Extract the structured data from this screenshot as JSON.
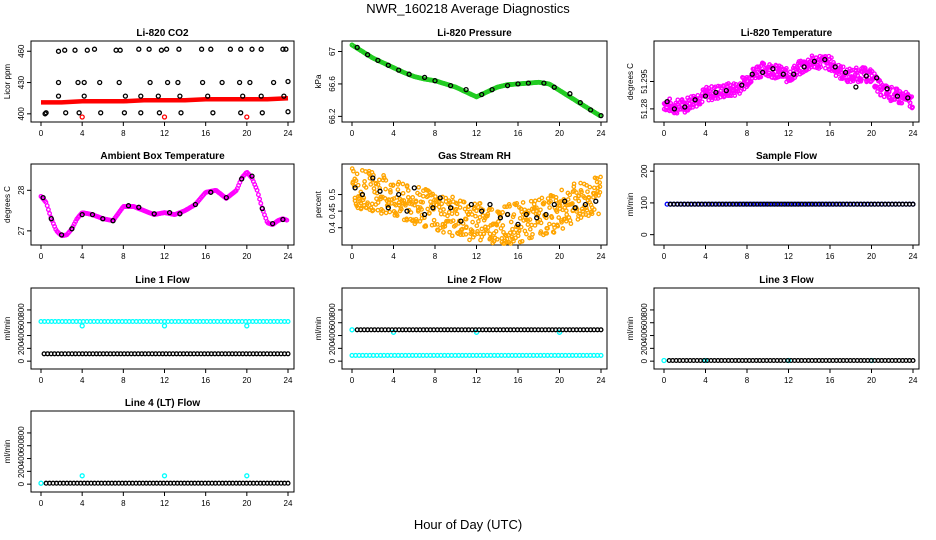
{
  "title": "NWR_160218  Average Diagnostics",
  "xlabel": "Hour of Day (UTC)",
  "colors": {
    "black": "#000000",
    "red": "#ff0000",
    "green": "#22cc22",
    "magenta": "#ff00ff",
    "orange": "#ffa500",
    "cyan": "#00ffff",
    "blue": "#0000ff"
  },
  "chart_data": [
    {
      "type": "scatter",
      "title": "Li-820 CO2",
      "ylabel": "Licor ppm",
      "xlim": [
        0,
        24
      ],
      "ylim": [
        396,
        466
      ],
      "xticks": [
        0,
        4,
        8,
        12,
        16,
        20,
        24
      ],
      "yticks": [
        400,
        430,
        460
      ],
      "series": [
        {
          "color": "#ff0000",
          "kind": "line",
          "x": [
            0,
            2,
            4,
            6,
            8,
            10,
            12,
            14,
            16,
            18,
            20,
            22,
            24
          ],
          "y": [
            411,
            411,
            412,
            412,
            412,
            413,
            413,
            413,
            414,
            414,
            414,
            414,
            415
          ]
        },
        {
          "color": "#ff0000",
          "kind": "points",
          "x": [
            4,
            12,
            20
          ],
          "y": [
            397,
            397,
            397
          ]
        },
        {
          "color": "#000000",
          "kind": "points",
          "x": [
            0.4,
            1.7,
            2.3,
            3.3,
            4.5,
            5.2,
            7.3,
            7.7,
            9.5,
            10.5,
            11.7,
            12.2,
            13.4,
            15.6,
            16.5,
            18.4,
            19.4,
            20.5,
            21.4,
            23.5,
            23.8,
            1.7,
            3.6,
            4.2,
            5.7,
            7.6,
            10.6,
            12.3,
            13.3,
            15.7,
            17.6,
            19.3,
            20.3,
            22.6,
            24.0,
            1.7,
            4.2,
            8.2,
            9.7,
            11.4,
            13.5,
            16.2,
            19.6,
            21.4,
            23.6,
            0.5,
            2.4,
            3.7,
            5.8,
            8.1,
            9.7,
            11.5,
            13.6,
            16.7,
            19.4,
            21.5,
            24.0
          ],
          "y": [
            400,
            460,
            461,
            461,
            461,
            462,
            461,
            461,
            462,
            462,
            461,
            462,
            462,
            462,
            462,
            462,
            462,
            462,
            462,
            462,
            462,
            430,
            430,
            430,
            430,
            430,
            430,
            430,
            430,
            430,
            430,
            430,
            430,
            430,
            431,
            417,
            417,
            417,
            417,
            417,
            417,
            417,
            417,
            417,
            417,
            401,
            401,
            401,
            401,
            401,
            401,
            401,
            401,
            401,
            401,
            401,
            402
          ]
        }
      ]
    },
    {
      "type": "scatter",
      "title": "Li-820 Pressure",
      "ylabel": "kPa",
      "xlim": [
        0,
        24
      ],
      "ylim": [
        66.18,
        67.08
      ],
      "xticks": [
        0,
        4,
        8,
        12,
        16,
        20,
        24
      ],
      "yticks": [
        66.2,
        66.6,
        67.0
      ],
      "series": [
        {
          "color": "#22cc22",
          "kind": "dense",
          "x": [
            0,
            1,
            2,
            3,
            4,
            5,
            6,
            7,
            8,
            9,
            10,
            11,
            12,
            13,
            14,
            15,
            16,
            17,
            18,
            19,
            20,
            21,
            22,
            23,
            24
          ],
          "y": [
            67.08,
            67.0,
            66.92,
            66.86,
            66.8,
            66.74,
            66.69,
            66.66,
            66.64,
            66.6,
            66.56,
            66.5,
            66.44,
            66.5,
            66.56,
            66.59,
            66.6,
            66.61,
            66.62,
            66.6,
            66.52,
            66.44,
            66.36,
            66.28,
            66.2
          ]
        },
        {
          "color": "#000000",
          "kind": "points",
          "x": [
            0.5,
            1.5,
            2.5,
            3.5,
            4.5,
            5.5,
            7,
            8,
            9.5,
            11,
            12.5,
            13.5,
            15,
            16,
            17,
            18.5,
            19.5,
            21,
            22,
            23,
            24
          ],
          "y": [
            67.05,
            66.96,
            66.89,
            66.83,
            66.77,
            66.72,
            66.68,
            66.64,
            66.58,
            66.53,
            66.47,
            66.53,
            66.58,
            66.6,
            66.61,
            66.61,
            66.56,
            66.48,
            66.37,
            66.28,
            66.21
          ]
        }
      ]
    },
    {
      "type": "scatter",
      "title": "Li-820 Temperature",
      "ylabel": "degrees C",
      "xlim": [
        0,
        24
      ],
      "ylim": [
        51.275,
        51.315
      ],
      "xticks": [
        0,
        4,
        8,
        12,
        16,
        20,
        24
      ],
      "yticks": [
        51.28,
        51.295
      ],
      "series": [
        {
          "color": "#ff00ff",
          "kind": "noisy",
          "x": [
            0,
            1,
            2,
            3,
            4,
            5,
            6,
            7,
            8,
            9,
            10,
            11,
            12,
            13,
            14,
            15,
            16,
            17,
            18,
            19,
            20,
            21,
            22,
            23,
            24
          ],
          "y": [
            51.283,
            51.281,
            51.282,
            51.285,
            51.288,
            51.289,
            51.29,
            51.291,
            51.296,
            51.301,
            51.302,
            51.3,
            51.298,
            51.302,
            51.305,
            51.306,
            51.305,
            51.3,
            51.298,
            51.299,
            51.298,
            51.29,
            51.288,
            51.286,
            51.284
          ],
          "noise": 0.004
        },
        {
          "color": "#000000",
          "kind": "points",
          "x": [
            0.3,
            1,
            2,
            3,
            4,
            5,
            6,
            7.5,
            8.5,
            9.5,
            10.5,
            11.5,
            12.5,
            13.5,
            14.5,
            15.5,
            16.5,
            17.5,
            18.5,
            19.5,
            20.5,
            21.5,
            22.5,
            23.5
          ],
          "y": [
            51.284,
            51.28,
            51.281,
            51.285,
            51.287,
            51.289,
            51.29,
            51.293,
            51.299,
            51.3,
            51.302,
            51.299,
            51.299,
            51.303,
            51.306,
            51.307,
            51.303,
            51.3,
            51.292,
            51.298,
            51.297,
            51.291,
            51.287,
            51.286
          ]
        }
      ]
    },
    {
      "type": "scatter",
      "title": "Ambient Box Temperature",
      "ylabel": "degrees C",
      "xlim": [
        0,
        24
      ],
      "ylim": [
        26.75,
        28.55
      ],
      "xticks": [
        0,
        4,
        8,
        12,
        16,
        20,
        24
      ],
      "yticks": [
        27.0,
        28.0
      ],
      "series": [
        {
          "color": "#ff00ff",
          "kind": "dense",
          "x": [
            0,
            0.5,
            1,
            1.5,
            2,
            2.5,
            3,
            3.5,
            4,
            5,
            6,
            7,
            8,
            9,
            10,
            11,
            12,
            13,
            14,
            15,
            16,
            17,
            18,
            19,
            19.5,
            20,
            20.5,
            21,
            21.5,
            22,
            22.5,
            23,
            23.5,
            24
          ],
          "y": [
            27.85,
            27.7,
            27.3,
            27.0,
            26.88,
            26.9,
            27.05,
            27.3,
            27.45,
            27.4,
            27.3,
            27.25,
            27.6,
            27.6,
            27.5,
            27.4,
            27.45,
            27.4,
            27.5,
            27.65,
            27.95,
            28.0,
            27.8,
            28.0,
            28.3,
            28.45,
            28.3,
            28.0,
            27.55,
            27.2,
            27.15,
            27.25,
            27.3,
            27.25
          ]
        },
        {
          "color": "#000000",
          "kind": "points",
          "x": [
            0.2,
            1,
            2,
            3,
            4,
            5,
            6,
            7,
            8.5,
            9.5,
            11,
            12.5,
            13.5,
            15,
            16.5,
            18,
            19.5,
            20.5,
            21.5,
            22.5,
            23.5
          ],
          "y": [
            27.82,
            27.3,
            26.9,
            27.05,
            27.4,
            27.4,
            27.3,
            27.25,
            27.62,
            27.58,
            27.42,
            27.45,
            27.42,
            27.65,
            27.95,
            27.82,
            28.28,
            28.35,
            27.55,
            27.18,
            27.28
          ]
        }
      ]
    },
    {
      "type": "scatter",
      "title": "Gas Stream RH",
      "ylabel": "percent",
      "xlim": [
        0,
        24
      ],
      "ylim": [
        0.36,
        0.58
      ],
      "xticks": [
        0,
        4,
        8,
        12,
        16,
        20,
        24
      ],
      "yticks": [
        0.4,
        0.45,
        0.5
      ],
      "series": [
        {
          "color": "#ffa500",
          "kind": "noisy",
          "x": [
            0,
            1,
            2,
            3,
            4,
            5,
            6,
            7,
            8,
            9,
            10,
            11,
            12,
            13,
            14,
            15,
            16,
            17,
            18,
            19,
            20,
            21,
            22,
            23,
            24
          ],
          "y": [
            0.52,
            0.515,
            0.51,
            0.5,
            0.49,
            0.47,
            0.465,
            0.46,
            0.45,
            0.44,
            0.43,
            0.425,
            0.42,
            0.415,
            0.41,
            0.41,
            0.415,
            0.42,
            0.43,
            0.44,
            0.45,
            0.47,
            0.48,
            0.49,
            0.5
          ],
          "noise": 0.06
        },
        {
          "color": "#000000",
          "kind": "points",
          "x": [
            0.3,
            1,
            2,
            2.7,
            3.5,
            4.5,
            5.3,
            6,
            7,
            7.8,
            8.5,
            9.5,
            10.5,
            11.5,
            12.5,
            13.3,
            14.3,
            15,
            16,
            16.8,
            17.8,
            18.7,
            19.5,
            20.5,
            21.5,
            22.5,
            23.5
          ],
          "y": [
            0.52,
            0.5,
            0.55,
            0.51,
            0.46,
            0.5,
            0.45,
            0.52,
            0.44,
            0.46,
            0.49,
            0.46,
            0.42,
            0.47,
            0.45,
            0.47,
            0.43,
            0.44,
            0.41,
            0.44,
            0.43,
            0.44,
            0.47,
            0.48,
            0.46,
            0.47,
            0.48
          ]
        }
      ]
    },
    {
      "type": "scatter",
      "title": "Sample Flow",
      "ylabel": "ml/min",
      "xlim": [
        0,
        24
      ],
      "ylim": [
        -20,
        210
      ],
      "xticks": [
        0,
        4,
        8,
        12,
        16,
        20,
        24
      ],
      "yticks": [
        0,
        100,
        200
      ],
      "series": [
        {
          "color": "#0000ff",
          "kind": "flat",
          "x": [
            0.3,
            24
          ],
          "y": [
            96,
            96
          ]
        },
        {
          "color": "#000000",
          "kind": "flat",
          "x": [
            0.6,
            24
          ],
          "y": [
            96,
            96
          ]
        }
      ]
    },
    {
      "type": "scatter",
      "title": "Line 1 Flow",
      "ylabel": "ml/min",
      "xlim": [
        0,
        24
      ],
      "ylim": [
        -60,
        1080
      ],
      "xticks": [
        0,
        4,
        8,
        12,
        16,
        20,
        24
      ],
      "yticks": [
        0,
        200,
        400,
        600,
        800
      ],
      "series": [
        {
          "color": "#00ffff",
          "kind": "flat",
          "x": [
            0,
            24
          ],
          "y": [
            620,
            620
          ]
        },
        {
          "color": "#00ffff",
          "kind": "points",
          "x": [
            4,
            12,
            20
          ],
          "y": [
            550,
            550,
            550
          ]
        },
        {
          "color": "#000000",
          "kind": "flat",
          "x": [
            0.3,
            24
          ],
          "y": [
            115,
            115
          ]
        }
      ]
    },
    {
      "type": "scatter",
      "title": "Line 2 Flow",
      "ylabel": "ml/min",
      "xlim": [
        0,
        24
      ],
      "ylim": [
        -60,
        1080
      ],
      "xticks": [
        0,
        4,
        8,
        12,
        16,
        20,
        24
      ],
      "yticks": [
        0,
        200,
        400,
        600,
        800
      ],
      "series": [
        {
          "color": "#00ffff",
          "kind": "flat",
          "x": [
            0,
            24
          ],
          "y": [
            90,
            90
          ]
        },
        {
          "color": "#00ffff",
          "kind": "points",
          "x": [
            0,
            4,
            12,
            20
          ],
          "y": [
            490,
            450,
            450,
            450
          ]
        },
        {
          "color": "#000000",
          "kind": "flat",
          "x": [
            0.5,
            24
          ],
          "y": [
            490,
            490
          ]
        }
      ]
    },
    {
      "type": "scatter",
      "title": "Line 3 Flow",
      "ylabel": "ml/min",
      "xlim": [
        0,
        24
      ],
      "ylim": [
        -60,
        1080
      ],
      "xticks": [
        0,
        4,
        8,
        12,
        16,
        20,
        24
      ],
      "yticks": [
        0,
        200,
        400,
        600,
        800
      ],
      "series": [
        {
          "color": "#00ffff",
          "kind": "points",
          "x": [
            0,
            4,
            12,
            20
          ],
          "y": [
            10,
            10,
            10,
            10
          ]
        },
        {
          "color": "#000000",
          "kind": "flat",
          "x": [
            0.5,
            24
          ],
          "y": [
            10,
            10
          ]
        }
      ]
    },
    {
      "type": "scatter",
      "title": "Line 4 (LT) Flow",
      "ylabel": "ml/min",
      "xlim": [
        0,
        24
      ],
      "ylim": [
        -60,
        1080
      ],
      "xticks": [
        0,
        4,
        8,
        12,
        16,
        20,
        24
      ],
      "yticks": [
        0,
        200,
        400,
        600,
        800
      ],
      "series": [
        {
          "color": "#00ffff",
          "kind": "points",
          "x": [
            0,
            4,
            12,
            20
          ],
          "y": [
            15,
            130,
            130,
            130
          ]
        },
        {
          "color": "#000000",
          "kind": "flat",
          "x": [
            0.5,
            24
          ],
          "y": [
            15,
            15
          ]
        }
      ]
    }
  ]
}
